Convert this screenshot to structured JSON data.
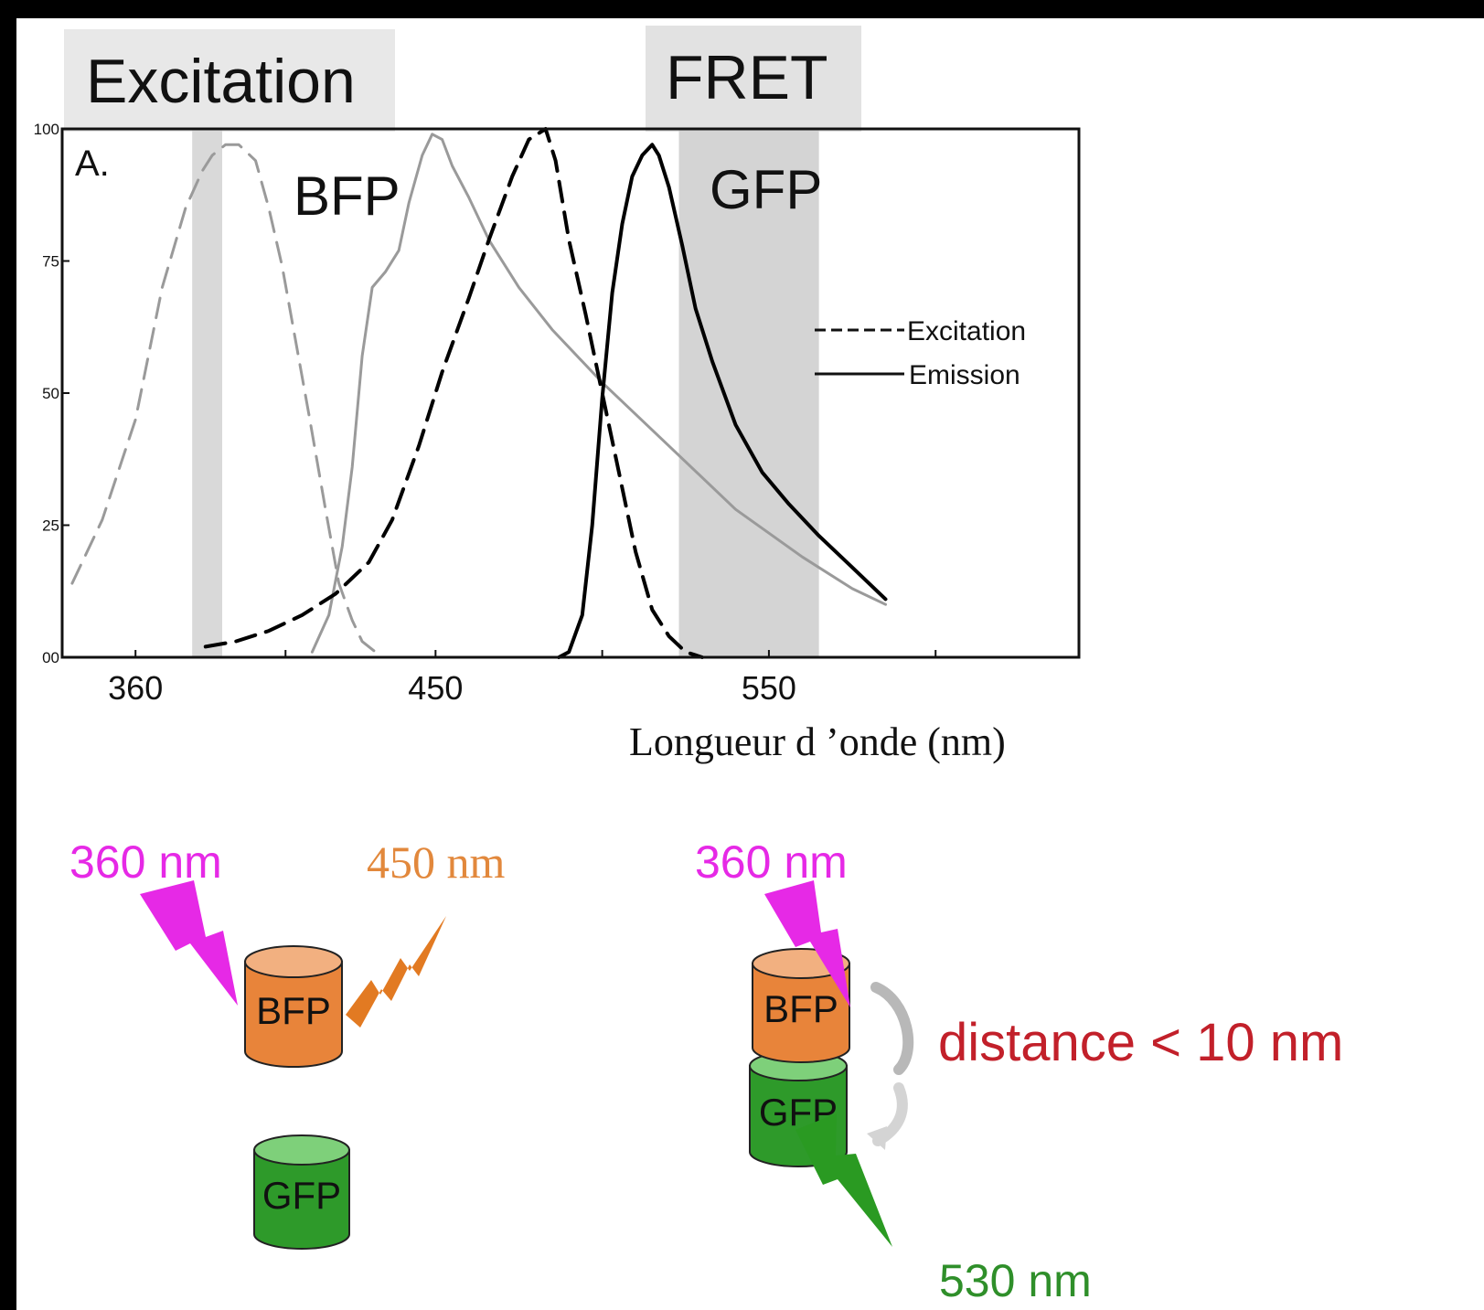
{
  "headings": {
    "excitation": "Excitation",
    "fret": "FRET"
  },
  "chart_data": {
    "type": "line",
    "panel_label": "A.",
    "xlabel": "Longueur d ’onde (nm)",
    "ylabel": "",
    "x_ticks": [
      "360",
      "450",
      "550"
    ],
    "y_ticks": [
      "100",
      "75",
      "50",
      "25",
      "00"
    ],
    "xlim": [
      338,
      643
    ],
    "ylim": [
      0,
      100
    ],
    "protein_labels": {
      "bfp": "BFP",
      "gfp": "GFP"
    },
    "legend": {
      "placement": "right",
      "entries": [
        {
          "label": "Excitation",
          "style": "dashed"
        },
        {
          "label": "Emission",
          "style": "solid"
        }
      ]
    },
    "shaded_bands": [
      {
        "from": 377,
        "to": 386,
        "tone": "#d9d9d9"
      },
      {
        "from": 523,
        "to": 565,
        "tone": "#d4d4d4"
      }
    ],
    "series": [
      {
        "protein": "BFP",
        "kind": "excitation",
        "color": "#9a9a9a",
        "style": "dashed",
        "x": [
          341,
          350,
          360,
          368,
          375,
          380,
          383,
          387,
          391,
          396,
          400,
          404,
          408,
          412,
          417,
          421,
          425,
          428,
          432
        ],
        "y": [
          14,
          26,
          45,
          70,
          85,
          92,
          95,
          97,
          97,
          94,
          85,
          74,
          60,
          46,
          28,
          14,
          7,
          3,
          1
        ]
      },
      {
        "protein": "BFP",
        "kind": "emission",
        "color": "#9a9a9a",
        "style": "solid",
        "x": [
          413,
          418,
          422,
          425,
          428,
          431,
          435,
          439,
          442,
          446,
          449,
          452,
          455,
          460,
          466,
          475,
          485,
          500,
          520,
          540,
          560,
          575,
          585
        ],
        "y": [
          1,
          8,
          21,
          36,
          57,
          70,
          73,
          77,
          86,
          95,
          99,
          98,
          93,
          87,
          79,
          70,
          62,
          52,
          40,
          28,
          19,
          13,
          10
        ]
      },
      {
        "protein": "GFP",
        "kind": "excitation",
        "color": "#000000",
        "style": "dashed",
        "x": [
          381,
          390,
          400,
          410,
          420,
          430,
          437,
          445,
          452,
          460,
          466,
          473,
          478,
          483,
          486,
          490,
          495,
          500,
          505,
          510,
          515,
          520,
          525,
          530
        ],
        "y": [
          2,
          3,
          5,
          8,
          12,
          18,
          26,
          40,
          54,
          68,
          79,
          91,
          98,
          100,
          94,
          79,
          65,
          50,
          35,
          20,
          9,
          4,
          1,
          0
        ]
      },
      {
        "protein": "GFP",
        "kind": "emission",
        "color": "#000000",
        "style": "solid",
        "x": [
          487,
          490,
          494,
          497,
          500,
          503,
          506,
          509,
          512,
          515,
          517,
          520,
          524,
          528,
          533,
          540,
          548,
          556,
          565,
          575,
          585
        ],
        "y": [
          0,
          1,
          8,
          25,
          49,
          69,
          82,
          91,
          95,
          97,
          95,
          89,
          78,
          66,
          56,
          44,
          35,
          29,
          23,
          17,
          11
        ]
      }
    ]
  },
  "diagram": {
    "left": {
      "excite_label": "360 nm",
      "emit_label": "450 nm",
      "donor_label": "BFP",
      "acceptor_label": "GFP"
    },
    "right": {
      "excite_label": "360 nm",
      "donor_label": "BFP",
      "acceptor_label": "GFP",
      "distance_label": "distance < 10 nm",
      "emit_label": "530 nm"
    },
    "colors": {
      "excite": "#e629e6",
      "bfp_emit": "#e27a22",
      "gfp_emit": "#2a9a22",
      "distance": "#c2202a",
      "bfp_label": "#e2883c",
      "gfp_label": "#2f8f2a"
    }
  }
}
